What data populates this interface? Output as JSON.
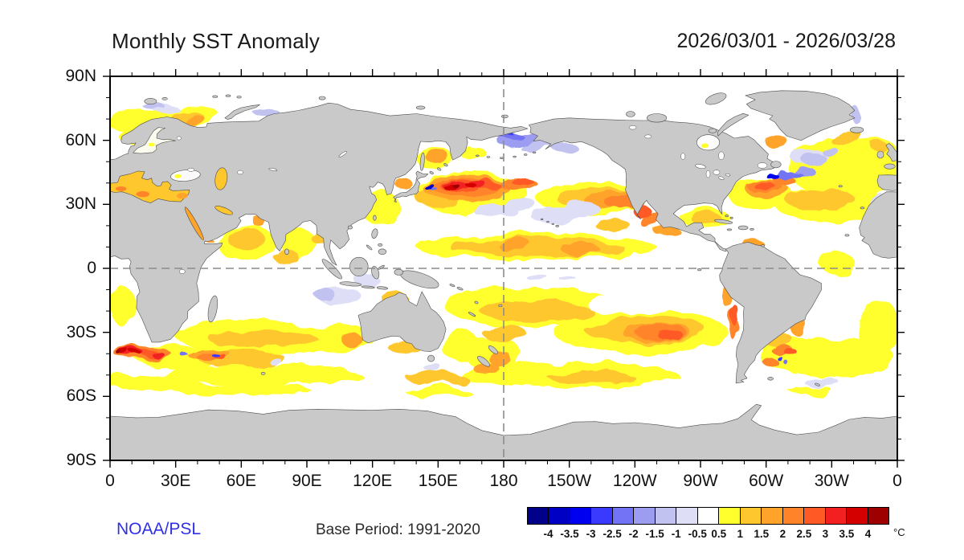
{
  "header": {
    "title": "Monthly SST Anomaly",
    "date_range": "2026/03/01 - 2026/03/28"
  },
  "footer": {
    "credit": "NOAA/PSL",
    "base_period": "Base Period: 1991-2020"
  },
  "axes": {
    "lat_ticks": [
      {
        "text": "90N",
        "deg": 90
      },
      {
        "text": "60N",
        "deg": 60
      },
      {
        "text": "30N",
        "deg": 30
      },
      {
        "text": "0",
        "deg": 0
      },
      {
        "text": "30S",
        "deg": -30
      },
      {
        "text": "60S",
        "deg": -60
      },
      {
        "text": "90S",
        "deg": -90
      }
    ],
    "lon_ticks": [
      {
        "text": "0",
        "deg": 0
      },
      {
        "text": "30E",
        "deg": 30
      },
      {
        "text": "60E",
        "deg": 60
      },
      {
        "text": "90E",
        "deg": 90
      },
      {
        "text": "120E",
        "deg": 120
      },
      {
        "text": "150E",
        "deg": 150
      },
      {
        "text": "180",
        "deg": 180
      },
      {
        "text": "150W",
        "deg": 210
      },
      {
        "text": "120W",
        "deg": 240
      },
      {
        "text": "90W",
        "deg": 270
      },
      {
        "text": "60W",
        "deg": 300
      },
      {
        "text": "30W",
        "deg": 330
      },
      {
        "text": "0",
        "deg": 360
      }
    ],
    "minor_interval_deg": 10,
    "major_interval_deg": 30
  },
  "colorbar": {
    "unit": "°C",
    "tick_labels": [
      "-4",
      "-3.5",
      "-3",
      "-2.5",
      "-2",
      "-1.5",
      "-1",
      "-0.5",
      "0.5",
      "1",
      "1.5",
      "2",
      "2.5",
      "3",
      "3.5",
      "4"
    ],
    "colors": [
      "#00008B",
      "#0000C4",
      "#0000F0",
      "#3A3AFF",
      "#7373F5",
      "#9C9CF0",
      "#C2C2F0",
      "#DEDEF7",
      "#FFFFFF",
      "#FFFF2E",
      "#FFC72E",
      "#FFA32B",
      "#FF8429",
      "#FF5A26",
      "#F22020",
      "#D40000",
      "#9E0000"
    ]
  },
  "map": {
    "land_color": "#C9C9C9",
    "ocean_color": "#FFFFFF",
    "coast_color": "#4D4D4D",
    "frame_color": "#000000",
    "dash_color": "#8C8C8C",
    "reference_lines": {
      "equator_lat": 0,
      "dateline_lon": 180
    }
  },
  "chart_data": {
    "type": "heatmap",
    "title": "Monthly SST Anomaly",
    "period": "2026/03/01 - 2026/03/28",
    "base_period": "1991-2020",
    "unit": "°C",
    "projection": {
      "type": "equirectangular",
      "lon_range": [
        0,
        360
      ],
      "lat_range": [
        -90,
        90
      ],
      "center": "Pacific (180)"
    },
    "levels": [
      -4,
      -3.5,
      -3,
      -2.5,
      -2,
      -1.5,
      -1,
      -0.5,
      0.5,
      1,
      1.5,
      2,
      2.5,
      3,
      3.5,
      4
    ],
    "palette": [
      "#00008B",
      "#0000C4",
      "#0000F0",
      "#3A3AFF",
      "#7373F5",
      "#9C9CF0",
      "#C2C2F0",
      "#DEDEF7",
      "#FFFFFF",
      "#FFFF2E",
      "#FFC72E",
      "#FFA32B",
      "#FF8429",
      "#FF5A26",
      "#F22020",
      "#D40000",
      "#9E0000"
    ],
    "notable_features": [
      "Strong warm anomaly (+3 to >+4 C) in the Kuroshio Extension east of Japan, 140E-175W at 32-45N",
      "Small intense cold spot (-3 to -4 C) immediately east of Honshu, Japan",
      "Cold anomaly (-1.5 to -2.5 C) in the Bering Sea spreading lighter cooling into the Gulf of Alaska",
      "Warm band (+1 to +2.5 C) across the NE Pacific from the dateline toward Baja California with red cores near Baja",
      "Neutral (white) equatorial Pacific wedge flanked by warm bands near 10N and 10-25S (SPCZ)",
      "Scattered weak cold specks (-0.5 to -1 C) in the central North Pacific 20-30N",
      "Warm Gulf Stream / NW Atlantic (+2 to +3 C) with cold streaks (-2 to -3 C) south of Newfoundland",
      "Broad +0.5 to +1.5 C warmth over subtropical North Atlantic, Mediterranean and Barents Sea",
      "Very strong Agulhas Return Current warm band (+3 to >+4 C) 0-30E near 40S with embedded -2 to -3 C eddies",
      "Weak cold patch (-0.5 to -1.5 C) northwest of Australia",
      "Warm band (+1 to +3 C) across the subtropical South Pacific to the Chile coast; warm Chile/Peru coastal strip",
      "Warm eddies (+2 to +3 C) with small cold cores in the Argentine Basin",
      "Circumpolar weak warm band (+0.5 to +1.5 C) near 45-55S; white near the Antarctic coast"
    ],
    "anomaly_blobs": [
      [
        15,
        69,
        18,
        5,
        0,
        0.7
      ],
      [
        38,
        72,
        12,
        4,
        0,
        0.7
      ],
      [
        10,
        62,
        6,
        4,
        0,
        0.7
      ],
      [
        336,
        47,
        26,
        14,
        0,
        0.7
      ],
      [
        330,
        30,
        26,
        8,
        0,
        0.7
      ],
      [
        352,
        55,
        8,
        5,
        0,
        0.7
      ],
      [
        333,
        2,
        8,
        5,
        0,
        0.7
      ],
      [
        62,
        12,
        13,
        9,
        0,
        0.7
      ],
      [
        86,
        12,
        8,
        7,
        0,
        0.7
      ],
      [
        75,
        -32,
        45,
        8,
        0,
        0.7
      ],
      [
        30,
        -41,
        20,
        5,
        0,
        0.7
      ],
      [
        70,
        -50,
        45,
        5,
        0,
        0.7
      ],
      [
        20,
        -53,
        25,
        4,
        0,
        0.7
      ],
      [
        6,
        -18,
        6,
        9,
        0,
        0.7
      ],
      [
        165,
        35,
        26,
        10,
        0,
        0.7
      ],
      [
        124,
        28,
        9,
        8,
        0,
        0.7
      ],
      [
        148,
        52,
        8,
        6,
        0,
        0.7
      ],
      [
        165,
        55,
        6,
        3,
        0,
        0.7
      ],
      [
        195,
        10,
        55,
        6,
        0,
        0.7
      ],
      [
        193,
        -18,
        40,
        9,
        0,
        0.7
      ],
      [
        243,
        -30,
        40,
        10,
        0,
        0.7
      ],
      [
        210,
        -50,
        50,
        6,
        0,
        0.7
      ],
      [
        220,
        33,
        25,
        8,
        0,
        0.7
      ],
      [
        272,
        24,
        11,
        5,
        0,
        0.7
      ],
      [
        297,
        35,
        15,
        7,
        0,
        0.7
      ],
      [
        305,
        -20,
        8,
        10,
        0,
        0.7
      ],
      [
        333,
        -42,
        26,
        9,
        0,
        0.7
      ],
      [
        352,
        -28,
        10,
        13,
        0,
        0.7
      ],
      [
        310,
        -40,
        13,
        8,
        0,
        0.7
      ],
      [
        175,
        -40,
        13,
        8,
        0,
        0.7
      ],
      [
        160,
        -36,
        9,
        7,
        0,
        0.7
      ],
      [
        35,
        -43,
        12,
        5,
        0,
        0.7
      ],
      [
        60,
        -57,
        32,
        2.5,
        0,
        0.7
      ],
      [
        150,
        -58,
        15,
        2,
        0,
        0.7
      ],
      [
        320,
        -57,
        10,
        2,
        0,
        0.7
      ],
      [
        35,
        71,
        8,
        3,
        0,
        1.2
      ],
      [
        62,
        14,
        8,
        6,
        0,
        1.2
      ],
      [
        96,
        15,
        5,
        3,
        0,
        1.2
      ],
      [
        80,
        6,
        6,
        3,
        0,
        1.2
      ],
      [
        150,
        33,
        10,
        5,
        0,
        1.2
      ],
      [
        222,
        33,
        18,
        5,
        0,
        1.2
      ],
      [
        195,
        10,
        40,
        4,
        0,
        1.2
      ],
      [
        230,
        20,
        8,
        3,
        0,
        1.2
      ],
      [
        195,
        -20,
        26,
        5,
        0,
        1.2
      ],
      [
        180,
        -30,
        10,
        4,
        0,
        1.2
      ],
      [
        245,
        -29,
        28,
        6,
        0,
        1.2
      ],
      [
        325,
        32,
        16,
        5,
        0,
        1.2
      ],
      [
        337,
        61,
        7,
        3,
        -20,
        1.2
      ],
      [
        352,
        57,
        4,
        2,
        0,
        1.2
      ],
      [
        70,
        -33,
        25,
        4,
        0,
        1.2
      ],
      [
        60,
        -42,
        20,
        4,
        0,
        1.2
      ],
      [
        130,
        -14,
        6,
        3,
        0,
        1.2
      ],
      [
        220,
        -51,
        20,
        3,
        0,
        1.2
      ],
      [
        150,
        -52,
        14,
        3,
        0,
        1.2
      ],
      [
        272,
        24,
        7,
        3,
        0,
        1.2
      ],
      [
        135,
        -37,
        8,
        3,
        0,
        1.2
      ],
      [
        305,
        -33,
        7,
        3,
        0,
        1.2
      ],
      [
        163,
        37.5,
        20,
        6,
        0,
        1.7
      ],
      [
        149,
        53,
        5,
        4,
        0,
        1.7
      ],
      [
        134,
        40,
        4,
        2.5,
        0,
        1.7
      ],
      [
        230,
        32,
        13,
        4,
        0,
        1.7
      ],
      [
        300,
        37.5,
        10,
        4,
        0,
        1.7
      ],
      [
        305,
        59,
        5,
        3.5,
        0,
        1.7
      ],
      [
        185,
        11,
        8,
        2.5,
        0,
        1.7
      ],
      [
        215,
        9,
        9,
        2.5,
        0,
        1.7
      ],
      [
        250,
        -30,
        16,
        4,
        0,
        1.7
      ],
      [
        45,
        -40,
        10,
        2.5,
        0,
        1.7
      ],
      [
        10,
        37,
        4,
        1.8,
        0,
        1.7
      ],
      [
        20,
        34.5,
        4,
        2,
        0,
        1.7
      ],
      [
        38,
        70.5,
        5,
        2,
        0,
        1.7
      ],
      [
        282,
        -12,
        2.5,
        6,
        0,
        1.7
      ],
      [
        315,
        -27,
        4,
        5,
        0,
        1.7
      ],
      [
        178,
        -42,
        5,
        4,
        0,
        1.7
      ],
      [
        172,
        -47,
        6,
        2.5,
        0,
        1.7
      ],
      [
        255,
        17,
        6,
        2.5,
        0,
        1.7
      ],
      [
        295,
        10.5,
        5,
        2,
        0,
        1.7
      ],
      [
        110,
        -33,
        5,
        3,
        0,
        1.7
      ],
      [
        44,
        13,
        3,
        1.5,
        0,
        1.7
      ],
      [
        68,
        22,
        3,
        2,
        0,
        1.7
      ],
      [
        162,
        38,
        15,
        4,
        0,
        2.2
      ],
      [
        186,
        40,
        9,
        3,
        0,
        2.2
      ],
      [
        235,
        31,
        9,
        3,
        0,
        2.2
      ],
      [
        247,
        23,
        5,
        3,
        -30,
        2.2
      ],
      [
        252,
        -30,
        12,
        3.5,
        0,
        2.2
      ],
      [
        307,
        -38,
        5,
        2.5,
        0,
        2.2
      ],
      [
        302,
        -44,
        3.5,
        2,
        0,
        2.2
      ],
      [
        285.5,
        -26,
        2,
        8,
        0,
        2.2
      ],
      [
        299,
        38.5,
        8,
        2.5,
        0,
        2.2
      ],
      [
        308,
        41.5,
        5,
        2,
        0,
        2.2
      ],
      [
        45,
        -41,
        6,
        1.8,
        0,
        2.2
      ],
      [
        15,
        -40,
        13,
        3,
        0,
        2.2
      ],
      [
        160,
        38.5,
        9,
        2.8,
        0,
        2.8
      ],
      [
        172,
        39.5,
        6,
        2,
        0,
        2.8
      ],
      [
        188,
        41,
        5,
        1.8,
        0,
        2.8
      ],
      [
        243,
        27,
        4,
        3,
        0,
        2.8
      ],
      [
        299,
        38.8,
        5,
        1.6,
        0,
        2.8
      ],
      [
        256,
        -31,
        6,
        2.2,
        0,
        2.8
      ],
      [
        311,
        -39,
        3,
        1.5,
        0,
        2.8
      ],
      [
        18,
        -40,
        5,
        1.6,
        0,
        2.8
      ],
      [
        50,
        -41,
        3,
        1.2,
        0,
        2.8
      ],
      [
        285.8,
        -22,
        1.5,
        5,
        0,
        2.8
      ],
      [
        158,
        38.5,
        6,
        2,
        0,
        3.3
      ],
      [
        168,
        39.5,
        4,
        1.5,
        0,
        3.3
      ],
      [
        10,
        -40,
        6,
        1.8,
        0,
        3.3
      ],
      [
        22,
        -40.5,
        3,
        1.2,
        0,
        3.3
      ],
      [
        156,
        38,
        3.5,
        1.3,
        0,
        3.8
      ],
      [
        165,
        39,
        2.5,
        1,
        0,
        3.8
      ],
      [
        7,
        -40,
        3,
        1.2,
        0,
        3.8
      ],
      [
        13,
        -40.5,
        2.5,
        1,
        0,
        3.8
      ],
      [
        158.5,
        38.3,
        1.8,
        0.9,
        0,
        4.5
      ],
      [
        5,
        -40.2,
        1.5,
        0.9,
        0,
        4.5
      ],
      [
        215,
        1,
        35,
        4.5,
        0,
        0
      ],
      [
        240,
        -17,
        22,
        5,
        0,
        0
      ],
      [
        190,
        25,
        28,
        4,
        0,
        0
      ],
      [
        240,
        -62,
        40,
        4,
        0,
        0
      ],
      [
        300,
        -50,
        13,
        4,
        0,
        0
      ],
      [
        95,
        -22,
        14,
        6,
        0,
        0
      ],
      [
        128,
        -25,
        10,
        5,
        0,
        0
      ],
      [
        350,
        12,
        10,
        7,
        0,
        0
      ],
      [
        25,
        -8,
        12,
        8,
        0,
        0
      ],
      [
        135,
        5,
        10,
        5,
        0,
        0
      ],
      [
        205,
        25,
        13,
        4,
        0,
        -0.7
      ],
      [
        216,
        28,
        8,
        3,
        0,
        -0.7
      ],
      [
        176,
        27,
        10,
        3,
        0,
        -0.7
      ],
      [
        188,
        30,
        7,
        2.5,
        0,
        -0.7
      ],
      [
        105,
        -13,
        10,
        4,
        0,
        -0.7
      ],
      [
        117,
        -5,
        6,
        2.5,
        0,
        -0.7
      ],
      [
        195,
        -4,
        5,
        1.2,
        0,
        -0.7
      ],
      [
        209,
        -4.5,
        4,
        1,
        0,
        -0.7
      ],
      [
        320,
        52,
        9,
        3,
        0,
        -0.7
      ],
      [
        325,
        -53,
        8,
        2,
        0,
        -0.7
      ],
      [
        148,
        -47,
        4,
        2,
        0,
        -0.7
      ],
      [
        75,
        -43,
        3,
        1.5,
        0,
        -0.7
      ],
      [
        25,
        75,
        6,
        2,
        0,
        -0.7
      ],
      [
        352,
        30,
        3,
        5,
        0,
        -0.7
      ],
      [
        196,
        57.5,
        8,
        2.5,
        -15,
        -1.2
      ],
      [
        208,
        56.5,
        7,
        2.5,
        10,
        -1.2
      ],
      [
        98,
        -12,
        5,
        2.5,
        0,
        -1.2
      ],
      [
        72,
        72.5,
        6,
        2,
        0,
        -1.2
      ],
      [
        20,
        76,
        5,
        1.5,
        0,
        -1.2
      ],
      [
        341,
        72,
        2.5,
        5,
        -20,
        -1.2
      ],
      [
        322,
        51,
        6,
        2.5,
        0,
        -1.2
      ],
      [
        330,
        54,
        4,
        2,
        0,
        -1.2
      ],
      [
        187,
        60,
        9,
        3.5,
        -10,
        -1.7
      ],
      [
        317,
        46,
        5,
        2,
        0,
        -1.7
      ],
      [
        183,
        62,
        6,
        2,
        0,
        -2.2
      ],
      [
        310,
        44,
        6,
        1.5,
        -10,
        -2.2
      ],
      [
        33,
        -39.5,
        1.8,
        0.9,
        0,
        -2.2
      ],
      [
        309,
        -44,
        1.2,
        0.8,
        0,
        -2.2
      ],
      [
        148,
        37.2,
        1.6,
        0.8,
        0,
        -2.2
      ],
      [
        181,
        63,
        3,
        1.2,
        0,
        -2.8
      ],
      [
        48,
        -40.5,
        1.8,
        0.9,
        0,
        -2.8
      ],
      [
        306,
        -42,
        1.4,
        0.9,
        0,
        -2.8
      ],
      [
        303,
        43,
        3,
        1,
        0,
        -3.3
      ],
      [
        146,
        38.3,
        2.2,
        1.1,
        -20,
        -3.8
      ]
    ]
  }
}
